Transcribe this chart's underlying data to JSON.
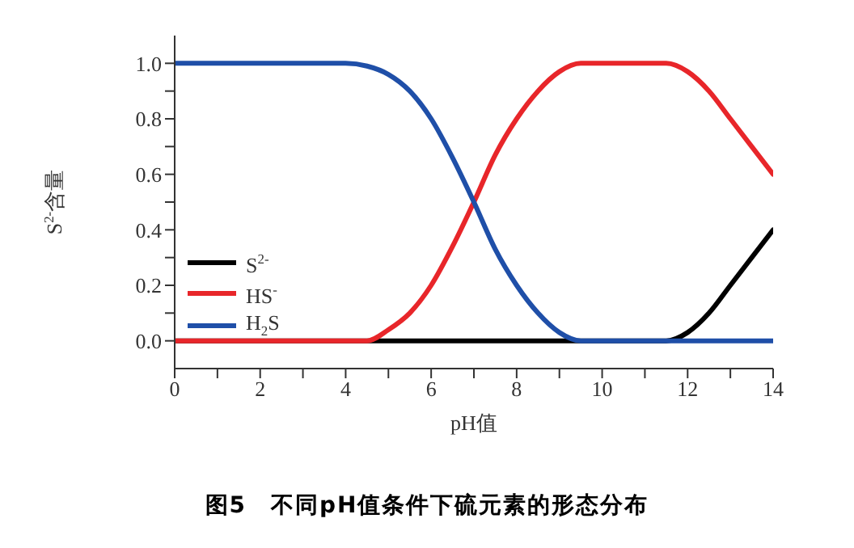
{
  "chart_data": {
    "type": "line",
    "title": "图5　不同pH值条件下硫元素的形态分布",
    "xlabel": "pH值",
    "ylabel": "S$^{2-}$含量",
    "x": [
      0,
      1,
      2,
      3,
      4,
      4.5,
      5,
      5.5,
      6,
      6.5,
      7,
      7.5,
      8,
      8.5,
      9,
      9.5,
      10,
      10.5,
      11,
      11.5,
      12,
      12.5,
      13,
      13.5,
      14
    ],
    "series": [
      {
        "name": "S$^{2-}$",
        "color": "#000000",
        "values": [
          0,
          0,
          0,
          0,
          0,
          0,
          0,
          0,
          0,
          0,
          0,
          0,
          0,
          0,
          0,
          0,
          0,
          0,
          0,
          0,
          0.03,
          0.1,
          0.2,
          0.3,
          0.4
        ]
      },
      {
        "name": "HS$^{-}$",
        "color": "#e8262a",
        "values": [
          0,
          0,
          0,
          0,
          0,
          0,
          0.04,
          0.1,
          0.2,
          0.34,
          0.5,
          0.67,
          0.8,
          0.9,
          0.97,
          1,
          1,
          1,
          1,
          1,
          0.97,
          0.9,
          0.8,
          0.7,
          0.6
        ]
      },
      {
        "name": "H$_{2}$S",
        "color": "#1f4fa8",
        "values": [
          1,
          1,
          1,
          1,
          1,
          0.99,
          0.96,
          0.9,
          0.8,
          0.66,
          0.5,
          0.33,
          0.2,
          0.1,
          0.03,
          0,
          0,
          0,
          0,
          0,
          0,
          0,
          0,
          0,
          0
        ]
      }
    ],
    "xlim": [
      0,
      14
    ],
    "xticks": [
      0,
      {
        "value": 1,
        "label": null
      },
      2,
      {
        "value": 3,
        "label": null
      },
      4,
      {
        "value": 5,
        "label": null
      },
      6,
      {
        "value": 7,
        "label": null
      },
      8,
      {
        "value": 9,
        "label": null
      },
      10,
      {
        "value": 11,
        "label": null
      },
      12,
      {
        "value": 13,
        "label": null
      },
      14
    ],
    "ylim": [
      -0.1,
      1.1
    ],
    "yticks": [
      {
        "value": 0,
        "label": "0.0"
      },
      {
        "value": 0.1,
        "label": null
      },
      {
        "value": 0.2,
        "label": "0.2"
      },
      {
        "value": 0.3,
        "label": null
      },
      {
        "value": 0.4,
        "label": "0.4"
      },
      {
        "value": 0.5,
        "label": null
      },
      {
        "value": 0.6,
        "label": "0.6"
      },
      {
        "value": 0.7,
        "label": null
      },
      {
        "value": 0.8,
        "label": "0.8"
      },
      {
        "value": 0.9,
        "label": null
      },
      {
        "value": 1,
        "label": "1.0"
      }
    ],
    "legend": "bottom left",
    "marker": "none",
    "line_style": "solid",
    "grid": false
  }
}
